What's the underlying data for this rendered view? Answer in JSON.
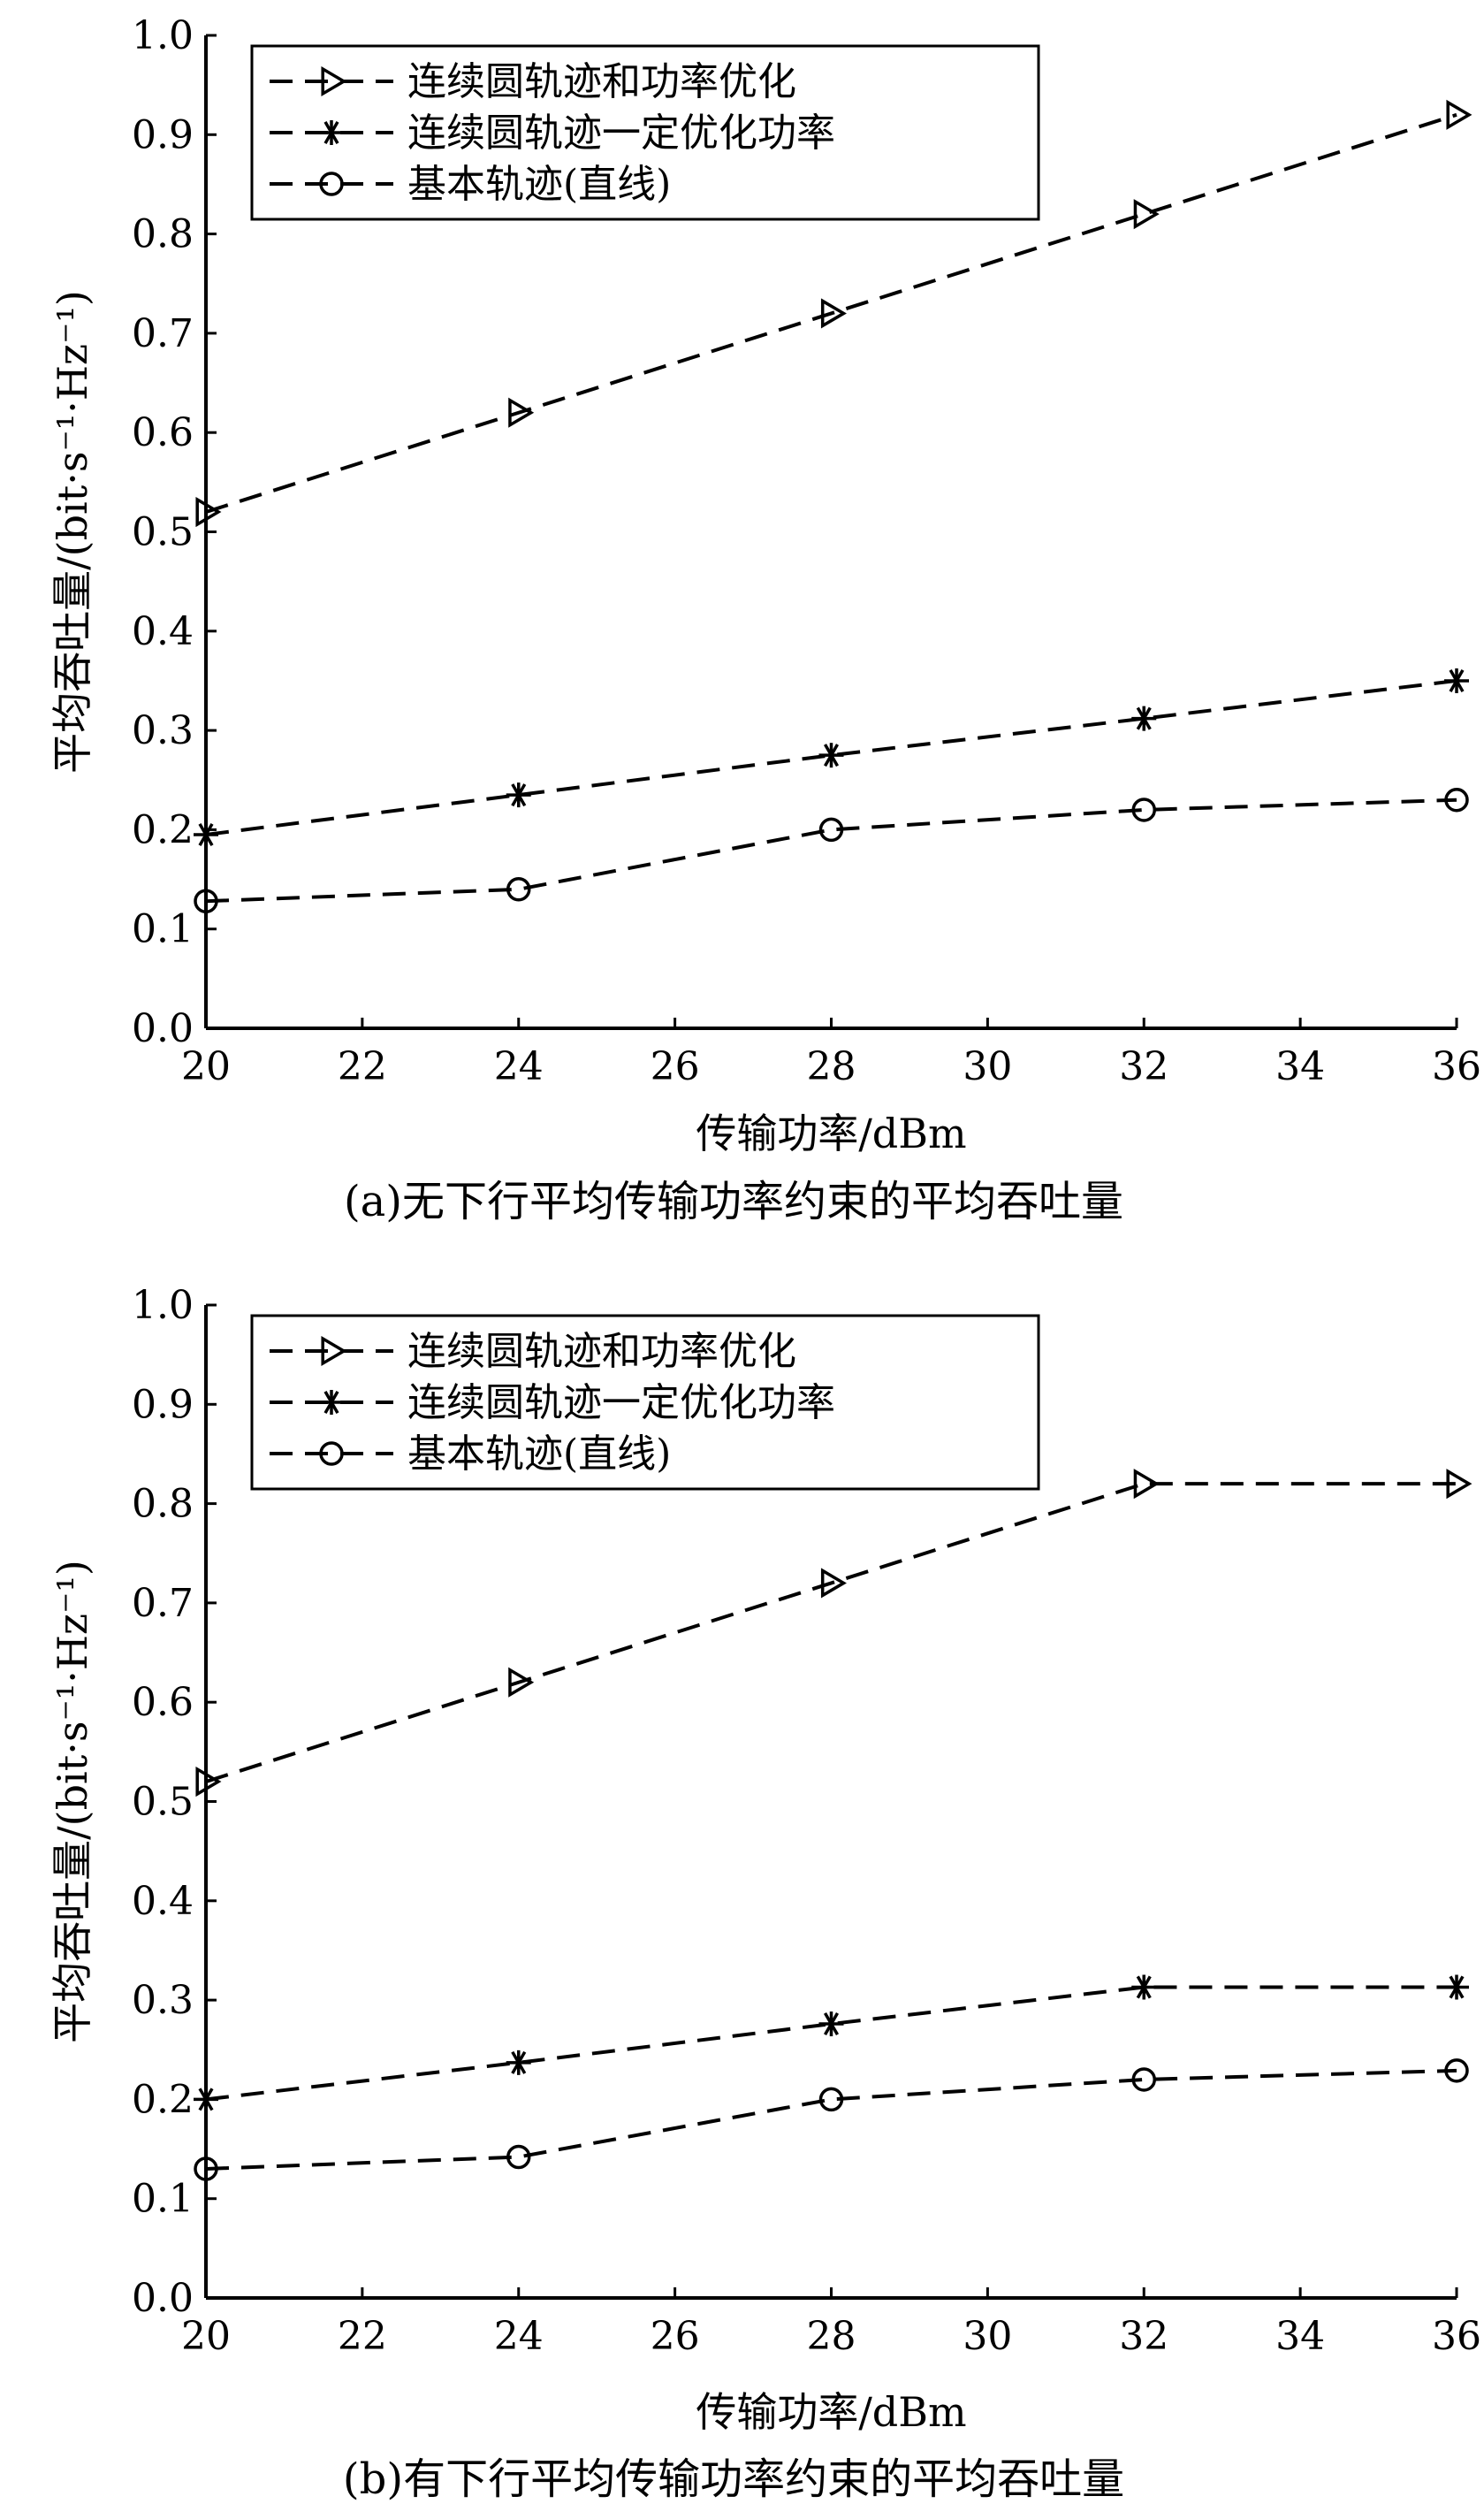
{
  "chart_data": [
    {
      "type": "line",
      "caption": "(a)无下行平均传输功率约束的平均吞吐量",
      "xlabel": "传输功率/dBm",
      "ylabel": "平均吞吐量/(bit·s⁻¹·Hz⁻¹)",
      "xlim": [
        20,
        36
      ],
      "ylim": [
        0.0,
        1.0
      ],
      "x_ticks": [
        "20",
        "22",
        "24",
        "26",
        "28",
        "30",
        "32",
        "34",
        "36"
      ],
      "y_ticks": [
        "0.0",
        "0.1",
        "0.2",
        "0.3",
        "0.4",
        "0.5",
        "0.6",
        "0.7",
        "0.8",
        "0.9",
        "1.0"
      ],
      "legend_position": "top-left",
      "x": [
        20,
        24,
        28,
        32,
        36
      ],
      "series": [
        {
          "name": "连续圆轨迹和功率优化",
          "marker": "triangle-right",
          "values": [
            0.52,
            0.62,
            0.72,
            0.82,
            0.92
          ]
        },
        {
          "name": "连续圆轨迹一定优化功率",
          "marker": "asterisk",
          "values": [
            0.195,
            0.235,
            0.275,
            0.312,
            0.35
          ]
        },
        {
          "name": "基本轨迹(直线)",
          "marker": "circle",
          "values": [
            0.128,
            0.14,
            0.2,
            0.22,
            0.23
          ]
        }
      ]
    },
    {
      "type": "line",
      "caption": "(b)有下行平均传输功率约束的平均吞吐量",
      "xlabel": "传输功率/dBm",
      "ylabel": "平均吞吐量/(bit·s⁻¹·Hz⁻¹)",
      "xlim": [
        20,
        36
      ],
      "ylim": [
        0.0,
        1.0
      ],
      "x_ticks": [
        "20",
        "22",
        "24",
        "26",
        "28",
        "30",
        "32",
        "34",
        "36"
      ],
      "y_ticks": [
        "0.0",
        "0.1",
        "0.2",
        "0.3",
        "0.4",
        "0.5",
        "0.6",
        "0.7",
        "0.8",
        "0.9",
        "1.0"
      ],
      "legend_position": "top-left",
      "x": [
        20,
        24,
        28,
        32,
        36
      ],
      "series": [
        {
          "name": "连续圆轨迹和功率优化",
          "marker": "triangle-right",
          "values": [
            0.52,
            0.62,
            0.72,
            0.82,
            0.82
          ]
        },
        {
          "name": "连续圆轨迹一定优化功率",
          "marker": "asterisk",
          "values": [
            0.2,
            0.237,
            0.276,
            0.313,
            0.313
          ]
        },
        {
          "name": "基本轨迹(直线)",
          "marker": "circle",
          "values": [
            0.13,
            0.142,
            0.2,
            0.22,
            0.229
          ]
        }
      ]
    }
  ]
}
